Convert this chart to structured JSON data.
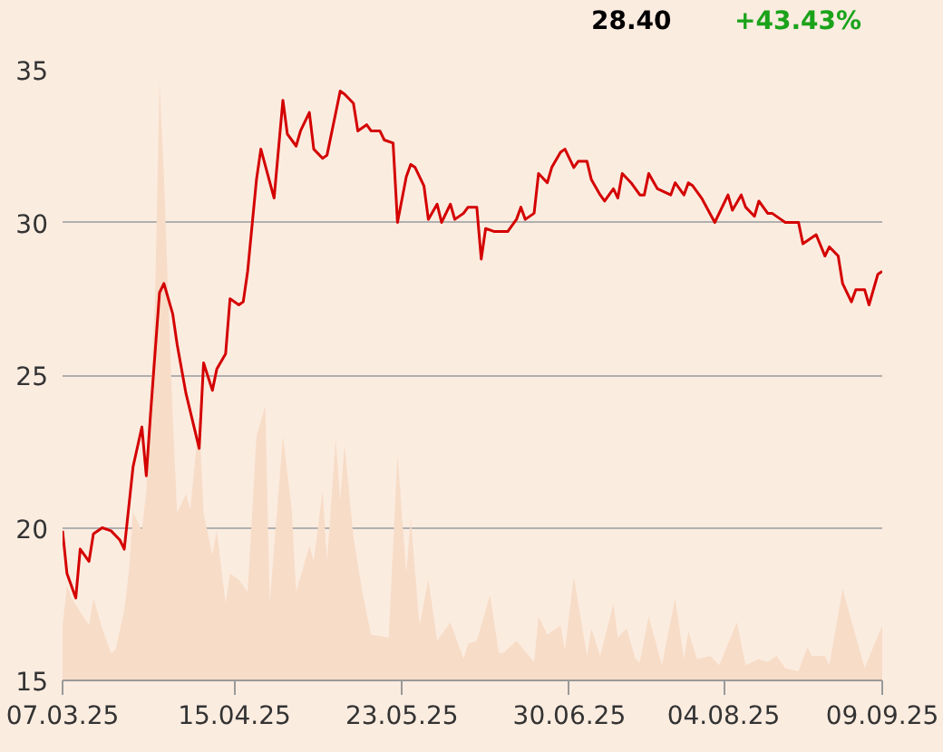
{
  "chart_data": {
    "type": "line",
    "annotations": [
      "28.40",
      "+43.43%"
    ],
    "xlim": [
      "2025-03-07",
      "2025-09-09"
    ],
    "xticks": [
      {
        "value": "2025-03-07",
        "label": "07.03.25"
      },
      {
        "value": "2025-04-15",
        "label": "15.04.25"
      },
      {
        "value": "2025-05-23",
        "label": "23.05.25"
      },
      {
        "value": "2025-06-30",
        "label": "30.06.25"
      },
      {
        "value": "2025-08-04",
        "label": "04.08.25"
      },
      {
        "value": "2025-09-09",
        "label": "09.09.25"
      }
    ],
    "ylim": [
      15,
      35
    ],
    "yticks": [
      15,
      20,
      25,
      30,
      35
    ],
    "grid": "y",
    "series": [
      {
        "type": "area",
        "color": "#f7dcc7",
        "x": [
          "2025-03-07",
          "2025-03-08",
          "2025-03-09",
          "2025-03-13",
          "2025-03-14",
          "2025-03-16",
          "2025-03-18",
          "2025-03-19",
          "2025-03-21",
          "2025-03-22",
          "2025-03-23",
          "2025-03-25",
          "2025-03-26",
          "2025-03-28",
          "2025-03-29",
          "2025-03-30",
          "2025-04-01",
          "2025-04-02",
          "2025-04-04",
          "2025-04-05",
          "2025-04-07",
          "2025-04-08",
          "2025-04-10",
          "2025-04-11",
          "2025-04-13",
          "2025-04-14",
          "2025-04-16",
          "2025-04-18",
          "2025-04-20",
          "2025-04-22",
          "2025-04-23",
          "2025-04-26",
          "2025-04-28",
          "2025-04-29",
          "2025-05-02",
          "2025-05-03",
          "2025-05-05",
          "2025-05-06",
          "2025-05-08",
          "2025-05-09",
          "2025-05-10",
          "2025-05-12",
          "2025-05-14",
          "2025-05-16",
          "2025-05-20",
          "2025-05-22",
          "2025-05-24",
          "2025-05-25",
          "2025-05-27",
          "2025-05-29",
          "2025-05-31",
          "2025-06-03",
          "2025-06-06",
          "2025-06-07",
          "2025-06-09",
          "2025-06-12",
          "2025-06-14",
          "2025-06-15",
          "2025-06-18",
          "2025-06-22",
          "2025-06-23",
          "2025-06-25",
          "2025-06-28",
          "2025-06-29",
          "2025-07-01",
          "2025-07-04",
          "2025-07-05",
          "2025-07-07",
          "2025-07-10",
          "2025-07-11",
          "2025-07-13",
          "2025-07-15",
          "2025-07-16",
          "2025-07-18",
          "2025-07-21",
          "2025-07-24",
          "2025-07-26",
          "2025-07-27",
          "2025-07-29",
          "2025-08-01",
          "2025-08-03",
          "2025-08-07",
          "2025-08-09",
          "2025-08-12",
          "2025-08-14",
          "2025-08-16",
          "2025-08-18",
          "2025-08-21",
          "2025-08-23",
          "2025-08-24",
          "2025-08-27",
          "2025-08-28",
          "2025-08-31",
          "2025-09-05",
          "2025-09-09"
        ],
        "values": [
          16.8,
          18.1,
          17.7,
          16.8,
          17.7,
          16.7,
          15.9,
          16.0,
          17.3,
          18.5,
          20.5,
          19.9,
          21.2,
          27.6,
          34.6,
          31.5,
          23.6,
          20.5,
          21.1,
          20.6,
          23.6,
          20.5,
          19.1,
          19.9,
          17.5,
          18.5,
          18.3,
          17.9,
          23.0,
          24.0,
          17.5,
          23.0,
          20.6,
          17.9,
          19.4,
          18.9,
          21.2,
          18.9,
          22.9,
          20.9,
          22.7,
          19.7,
          17.9,
          16.5,
          16.4,
          22.4,
          18.5,
          20.3,
          16.8,
          18.3,
          16.3,
          16.9,
          15.7,
          16.2,
          16.3,
          17.8,
          15.9,
          15.9,
          16.3,
          15.6,
          17.1,
          16.5,
          16.8,
          16.0,
          18.4,
          15.8,
          16.7,
          15.8,
          17.5,
          16.4,
          16.7,
          15.7,
          15.6,
          17.1,
          15.5,
          17.7,
          15.7,
          16.6,
          15.7,
          15.8,
          15.5,
          16.9,
          15.5,
          15.7,
          15.6,
          15.8,
          15.4,
          15.3,
          16.1,
          15.8,
          15.8,
          15.5,
          18.0,
          15.4,
          16.8
        ]
      },
      {
        "color": "#d40000",
        "x": [
          "2025-03-07",
          "2025-03-08",
          "2025-03-10",
          "2025-03-11",
          "2025-03-13",
          "2025-03-14",
          "2025-03-16",
          "2025-03-18",
          "2025-03-20",
          "2025-03-21",
          "2025-03-23",
          "2025-03-25",
          "2025-03-26",
          "2025-03-27",
          "2025-03-29",
          "2025-03-30",
          "2025-04-01",
          "2025-04-02",
          "2025-04-04",
          "2025-04-07",
          "2025-04-08",
          "2025-04-10",
          "2025-04-11",
          "2025-04-13",
          "2025-04-14",
          "2025-04-16",
          "2025-04-17",
          "2025-04-18",
          "2025-04-20",
          "2025-04-21",
          "2025-04-24",
          "2025-04-26",
          "2025-04-27",
          "2025-04-29",
          "2025-04-30",
          "2025-05-02",
          "2025-05-03",
          "2025-05-05",
          "2025-05-06",
          "2025-05-08",
          "2025-05-09",
          "2025-05-10",
          "2025-05-12",
          "2025-05-13",
          "2025-05-15",
          "2025-05-16",
          "2025-05-18",
          "2025-05-19",
          "2025-05-21",
          "2025-05-22",
          "2025-05-24",
          "2025-05-25",
          "2025-05-26",
          "2025-05-28",
          "2025-05-29",
          "2025-05-31",
          "2025-06-01",
          "2025-06-03",
          "2025-06-04",
          "2025-06-06",
          "2025-06-07",
          "2025-06-09",
          "2025-06-10",
          "2025-06-11",
          "2025-06-13",
          "2025-06-15",
          "2025-06-16",
          "2025-06-18",
          "2025-06-19",
          "2025-06-20",
          "2025-06-22",
          "2025-06-23",
          "2025-06-25",
          "2025-06-26",
          "2025-06-28",
          "2025-06-29",
          "2025-07-01",
          "2025-07-02",
          "2025-07-04",
          "2025-07-05",
          "2025-07-07",
          "2025-07-08",
          "2025-07-10",
          "2025-07-11",
          "2025-07-12",
          "2025-07-14",
          "2025-07-16",
          "2025-07-17",
          "2025-07-18",
          "2025-07-20",
          "2025-07-23",
          "2025-07-24",
          "2025-07-26",
          "2025-07-27",
          "2025-07-28",
          "2025-07-30",
          "2025-08-02",
          "2025-08-05",
          "2025-08-06",
          "2025-08-08",
          "2025-08-09",
          "2025-08-11",
          "2025-08-12",
          "2025-08-14",
          "2025-08-15",
          "2025-08-17",
          "2025-08-18",
          "2025-08-21",
          "2025-08-22",
          "2025-08-25",
          "2025-08-27",
          "2025-08-28",
          "2025-08-30",
          "2025-08-31",
          "2025-09-02",
          "2025-09-03",
          "2025-09-05",
          "2025-09-06",
          "2025-09-08",
          "2025-09-09"
        ],
        "values": [
          19.9,
          18.5,
          17.7,
          19.3,
          18.9,
          19.8,
          20.0,
          19.9,
          19.6,
          19.3,
          22.0,
          23.3,
          21.7,
          23.8,
          27.7,
          28.0,
          27.0,
          26.0,
          24.4,
          22.6,
          25.4,
          24.5,
          25.2,
          25.7,
          27.5,
          27.3,
          27.4,
          28.4,
          31.4,
          32.4,
          30.8,
          34.0,
          32.9,
          32.5,
          33.0,
          33.6,
          32.4,
          32.1,
          32.2,
          33.6,
          34.3,
          34.2,
          33.9,
          33.0,
          33.2,
          33.0,
          33.0,
          32.7,
          32.6,
          30.0,
          31.5,
          31.9,
          31.8,
          31.2,
          30.1,
          30.6,
          30.0,
          30.6,
          30.1,
          30.3,
          30.5,
          30.5,
          28.8,
          29.8,
          29.7,
          29.7,
          29.7,
          30.1,
          30.5,
          30.1,
          30.3,
          31.6,
          31.3,
          31.8,
          32.3,
          32.4,
          31.8,
          32.0,
          32.0,
          31.4,
          30.9,
          30.7,
          31.1,
          30.8,
          31.6,
          31.3,
          30.9,
          30.9,
          31.6,
          31.1,
          30.9,
          31.3,
          30.9,
          31.3,
          31.2,
          30.8,
          30.0,
          30.9,
          30.4,
          30.9,
          30.5,
          30.2,
          30.7,
          30.3,
          30.3,
          30.1,
          30.0,
          30.0,
          29.3,
          29.6,
          28.9,
          29.2,
          28.9,
          28.0,
          27.4,
          27.8,
          27.8,
          27.3,
          28.3,
          28.4
        ]
      }
    ]
  }
}
